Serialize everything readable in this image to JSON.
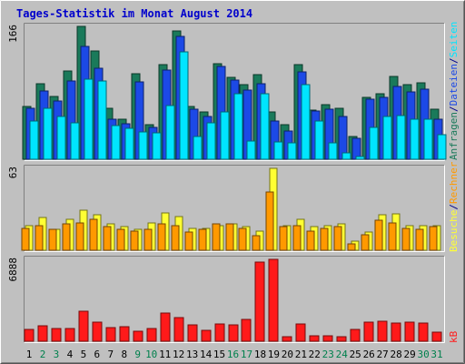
{
  "chart_data": {
    "type": "bar",
    "title": "Tages-Statistik im Monat August 2014",
    "categories": [
      "1",
      "2",
      "3",
      "4",
      "5",
      "6",
      "7",
      "8",
      "9",
      "10",
      "11",
      "12",
      "13",
      "14",
      "15",
      "16",
      "17",
      "18",
      "19",
      "20",
      "21",
      "22",
      "23",
      "24",
      "25",
      "26",
      "27",
      "28",
      "29",
      "30",
      "31"
    ],
    "weekend_days": [
      "2",
      "3",
      "9",
      "10",
      "16",
      "17",
      "23",
      "24",
      "30",
      "31"
    ],
    "panels": [
      {
        "id": "top",
        "max_label": "166",
        "ymax": 166,
        "series": [
          {
            "name": "Anfragen",
            "color": "#1a7a5a",
            "values": [
              66,
              94,
              78,
              110,
              166,
              135,
              64,
              50,
              107,
              43,
              118,
              160,
              66,
              59,
              119,
              102,
              93,
              106,
              59,
              43,
              118,
              61,
              68,
              64,
              28,
              77,
              82,
              104,
              93,
              96,
              63
            ]
          },
          {
            "name": "Dateien",
            "color": "#1c49e6",
            "values": [
              64,
              85,
              73,
              98,
              141,
              114,
              50,
              44,
              97,
              40,
              111,
              154,
              62,
              54,
              116,
              99,
              86,
              94,
              48,
              35,
              109,
              60,
              63,
              54,
              26,
              75,
              77,
              91,
              84,
              88,
              50
            ]
          },
          {
            "name": "Seiten",
            "color": "#00e5ff",
            "values": [
              48,
              64,
              53,
              45,
              100,
              98,
              42,
              39,
              34,
              33,
              67,
              134,
              28,
              46,
              59,
              82,
              23,
              82,
              22,
              20,
              93,
              48,
              21,
              8,
              3,
              40,
              54,
              55,
              50,
              50,
              31
            ]
          }
        ]
      },
      {
        "id": "middle",
        "max_label": "63",
        "ymax": 63,
        "series": [
          {
            "name": "Besuche",
            "color": "#ffff33",
            "values": [
              19,
              25,
              16,
              24,
              31,
              27,
              20,
              18,
              16,
              21,
              29,
              26,
              17,
              17,
              19,
              20,
              18,
              15,
              63,
              19,
              24,
              18,
              19,
              20,
              7,
              14,
              27,
              28,
              19,
              19,
              19
            ]
          },
          {
            "name": "Rechner",
            "color": "#ff9900",
            "values": [
              17,
              19,
              16,
              20,
              21,
              24,
              18,
              16,
              15,
              16,
              20,
              19,
              14,
              16,
              20,
              20,
              17,
              11,
              45,
              18,
              19,
              15,
              17,
              18,
              5,
              12,
              23,
              21,
              17,
              16,
              18
            ]
          }
        ]
      },
      {
        "id": "bottom",
        "max_label": "6888",
        "ymax": 6888,
        "series": [
          {
            "name": "kB",
            "color": "#ff1a1a",
            "values": [
              1004,
              1327,
              1053,
              1069,
              2495,
              1587,
              1167,
              1189,
              853,
              1050,
              2350,
              2014,
              1380,
              901,
              1437,
              1367,
              1847,
              6635,
              6888,
              376,
              1453,
              497,
              479,
              345,
              1004,
              1574,
              1711,
              1532,
              1574,
              1563,
              739
            ]
          }
        ]
      }
    ],
    "right_legend": [
      {
        "text": "Anfragen",
        "color": "#1a7a5a"
      },
      {
        "text": "/",
        "color": "#00008b"
      },
      {
        "text": "Dateien",
        "color": "#1c49e6"
      },
      {
        "text": "/",
        "color": "#00008b"
      },
      {
        "text": "Seiten",
        "color": "#00e5ff"
      },
      {
        "text": "Besuche",
        "color": "#ffff33"
      },
      {
        "text": "/",
        "color": "#00008b"
      },
      {
        "text": "Rechner",
        "color": "#ff9900"
      },
      {
        "text": "kB",
        "color": "#ff1a1a"
      }
    ],
    "colors": {
      "background": "#c0c0c0",
      "plot": "#c0c0c0",
      "frame_dark": "#808080",
      "frame_light": "#ffffff",
      "title": "#0000cc",
      "weekday_label": "#000000",
      "weekend_label": "#00804d"
    }
  }
}
